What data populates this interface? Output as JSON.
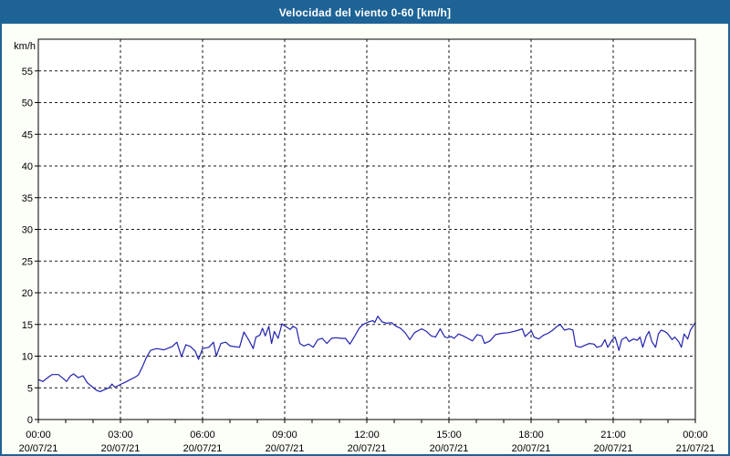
{
  "title": "Velocidad del viento 0-60 [km/h]",
  "colors": {
    "titlebar_bg": "#1d6396",
    "frame_border": "#1d6396",
    "page_bg": "#fcfef8",
    "plot_bg": "#ffffff",
    "axis": "#000000",
    "grid": "#1a1a1a",
    "label_text": "#000000",
    "title_text": "#ffffff",
    "series_line": "#2222b0"
  },
  "y_axis": {
    "unit_label": "km/h",
    "tick_labels": [
      "0",
      "5",
      "10",
      "15",
      "20",
      "25",
      "30",
      "35",
      "40",
      "45",
      "50",
      "55"
    ]
  },
  "x_axis": {
    "major_ticks": [
      {
        "time": "00:00",
        "date": "20/07/21"
      },
      {
        "time": "03:00",
        "date": "20/07/21"
      },
      {
        "time": "06:00",
        "date": "20/07/21"
      },
      {
        "time": "09:00",
        "date": "20/07/21"
      },
      {
        "time": "12:00",
        "date": "20/07/21"
      },
      {
        "time": "15:00",
        "date": "20/07/21"
      },
      {
        "time": "18:00",
        "date": "20/07/21"
      },
      {
        "time": "21:00",
        "date": "20/07/21"
      },
      {
        "time": "00:00",
        "date": "21/07/21"
      }
    ]
  },
  "chart_data": {
    "type": "line",
    "title": "Velocidad del viento 0-60 [km/h]",
    "xlabel": "",
    "ylabel": "km/h",
    "ylim": [
      0,
      60
    ],
    "y_tick_step": 5,
    "xlim_hours": [
      0,
      24
    ],
    "x_major_step_hours": 3,
    "x_minor_step_hours": 1,
    "grid": "dashed",
    "legend_position": "none",
    "series": [
      {
        "name": "Velocidad del viento",
        "color": "#2222b0",
        "points": [
          [
            0,
            6.3
          ],
          [
            0.17,
            6.0
          ],
          [
            0.34,
            6.6
          ],
          [
            0.5,
            7.1
          ],
          [
            0.73,
            7.1
          ],
          [
            0.9,
            6.5
          ],
          [
            1.03,
            6.0
          ],
          [
            1.18,
            6.9
          ],
          [
            1.29,
            7.2
          ],
          [
            1.46,
            6.6
          ],
          [
            1.63,
            6.9
          ],
          [
            1.79,
            5.8
          ],
          [
            1.96,
            5.2
          ],
          [
            2.13,
            4.6
          ],
          [
            2.26,
            4.4
          ],
          [
            2.41,
            4.7
          ],
          [
            2.58,
            5.0
          ],
          [
            2.69,
            5.6
          ],
          [
            2.8,
            5.1
          ],
          [
            2.94,
            5.4
          ],
          [
            3.08,
            5.7
          ],
          [
            3.23,
            6.0
          ],
          [
            3.36,
            6.3
          ],
          [
            3.5,
            6.6
          ],
          [
            3.65,
            7.0
          ],
          [
            3.8,
            8.3
          ],
          [
            3.95,
            9.8
          ],
          [
            4.1,
            10.9
          ],
          [
            4.32,
            11.2
          ],
          [
            4.59,
            11.0
          ],
          [
            4.89,
            11.5
          ],
          [
            5.06,
            12.2
          ],
          [
            5.23,
            9.9
          ],
          [
            5.39,
            11.8
          ],
          [
            5.56,
            11.5
          ],
          [
            5.73,
            10.8
          ],
          [
            5.85,
            9.5
          ],
          [
            6.0,
            11.2
          ],
          [
            6.23,
            11.4
          ],
          [
            6.4,
            12.2
          ],
          [
            6.5,
            10.0
          ],
          [
            6.67,
            12.0
          ],
          [
            6.84,
            12.2
          ],
          [
            7.01,
            11.6
          ],
          [
            7.18,
            11.5
          ],
          [
            7.35,
            11.4
          ],
          [
            7.51,
            13.8
          ],
          [
            7.68,
            12.6
          ],
          [
            7.85,
            11.2
          ],
          [
            7.95,
            13.0
          ],
          [
            8.09,
            13.3
          ],
          [
            8.19,
            14.4
          ],
          [
            8.29,
            13.2
          ],
          [
            8.42,
            14.7
          ],
          [
            8.52,
            12.0
          ],
          [
            8.62,
            13.9
          ],
          [
            8.76,
            12.8
          ],
          [
            8.9,
            15.1
          ],
          [
            9.03,
            14.7
          ],
          [
            9.2,
            14.2
          ],
          [
            9.3,
            14.7
          ],
          [
            9.43,
            14.4
          ],
          [
            9.55,
            12.0
          ],
          [
            9.7,
            11.6
          ],
          [
            9.87,
            11.9
          ],
          [
            10.04,
            11.4
          ],
          [
            10.21,
            12.6
          ],
          [
            10.37,
            12.8
          ],
          [
            10.54,
            12.0
          ],
          [
            10.71,
            12.8
          ],
          [
            10.88,
            12.9
          ],
          [
            11.05,
            12.8
          ],
          [
            11.22,
            12.8
          ],
          [
            11.38,
            11.9
          ],
          [
            11.55,
            13.1
          ],
          [
            11.72,
            14.4
          ],
          [
            11.86,
            15.0
          ],
          [
            12.06,
            15.4
          ],
          [
            12.22,
            15.6
          ],
          [
            12.29,
            15.3
          ],
          [
            12.4,
            16.3
          ],
          [
            12.56,
            15.4
          ],
          [
            12.73,
            15.2
          ],
          [
            12.9,
            15.3
          ],
          [
            13.07,
            14.7
          ],
          [
            13.23,
            14.4
          ],
          [
            13.4,
            13.7
          ],
          [
            13.57,
            12.6
          ],
          [
            13.74,
            13.7
          ],
          [
            13.91,
            14.1
          ],
          [
            14.01,
            14.3
          ],
          [
            14.18,
            13.9
          ],
          [
            14.35,
            13.2
          ],
          [
            14.51,
            13.0
          ],
          [
            14.68,
            14.3
          ],
          [
            14.85,
            13.0
          ],
          [
            14.95,
            12.9
          ],
          [
            15.08,
            13.1
          ],
          [
            15.19,
            12.8
          ],
          [
            15.35,
            13.5
          ],
          [
            15.52,
            13.2
          ],
          [
            15.69,
            12.8
          ],
          [
            15.86,
            12.4
          ],
          [
            16.03,
            13.4
          ],
          [
            16.2,
            13.2
          ],
          [
            16.3,
            12.0
          ],
          [
            16.5,
            12.4
          ],
          [
            16.7,
            13.4
          ],
          [
            16.94,
            13.6
          ],
          [
            17.17,
            13.7
          ],
          [
            17.37,
            13.9
          ],
          [
            17.54,
            14.1
          ],
          [
            17.68,
            14.3
          ],
          [
            17.78,
            13.1
          ],
          [
            17.88,
            13.5
          ],
          [
            18.01,
            14.0
          ],
          [
            18.11,
            13.0
          ],
          [
            18.28,
            12.7
          ],
          [
            18.45,
            13.3
          ],
          [
            18.62,
            13.6
          ],
          [
            18.79,
            14.1
          ],
          [
            18.95,
            14.7
          ],
          [
            19.06,
            15.0
          ],
          [
            19.22,
            14.1
          ],
          [
            19.39,
            14.3
          ],
          [
            19.53,
            14.1
          ],
          [
            19.63,
            11.6
          ],
          [
            19.8,
            11.4
          ],
          [
            19.96,
            11.7
          ],
          [
            20.13,
            12.0
          ],
          [
            20.3,
            11.9
          ],
          [
            20.4,
            11.4
          ],
          [
            20.57,
            11.6
          ],
          [
            20.7,
            12.6
          ],
          [
            20.8,
            11.4
          ],
          [
            20.97,
            12.6
          ],
          [
            21.07,
            13.0
          ],
          [
            21.21,
            10.9
          ],
          [
            21.31,
            12.6
          ],
          [
            21.47,
            13.0
          ],
          [
            21.58,
            12.3
          ],
          [
            21.74,
            12.7
          ],
          [
            21.88,
            12.5
          ],
          [
            21.98,
            13.0
          ],
          [
            22.08,
            11.4
          ],
          [
            22.21,
            13.2
          ],
          [
            22.31,
            13.9
          ],
          [
            22.41,
            12.3
          ],
          [
            22.55,
            11.4
          ],
          [
            22.65,
            13.5
          ],
          [
            22.75,
            14.1
          ],
          [
            22.88,
            13.9
          ],
          [
            22.98,
            13.6
          ],
          [
            23.15,
            12.6
          ],
          [
            23.25,
            13.0
          ],
          [
            23.39,
            12.3
          ],
          [
            23.49,
            11.4
          ],
          [
            23.59,
            13.5
          ],
          [
            23.72,
            12.7
          ],
          [
            23.82,
            14.1
          ],
          [
            24,
            15.3
          ]
        ]
      }
    ]
  }
}
